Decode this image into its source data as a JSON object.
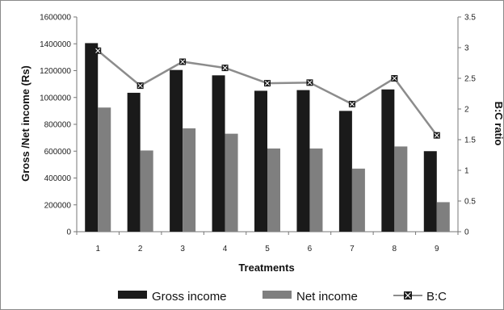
{
  "chart_data": {
    "type": "bar",
    "categories": [
      "1",
      "2",
      "3",
      "4",
      "5",
      "6",
      "7",
      "8",
      "9"
    ],
    "series": [
      {
        "name": "Gross income",
        "type": "bar",
        "axis": "left",
        "color": "#1a1a1a",
        "values": [
          1405000,
          1035000,
          1205000,
          1165000,
          1050000,
          1055000,
          900000,
          1060000,
          600000
        ]
      },
      {
        "name": "Net income",
        "type": "bar",
        "axis": "left",
        "color": "#7f7f7f",
        "values": [
          925000,
          605000,
          770000,
          730000,
          620000,
          620000,
          470000,
          635000,
          220000
        ]
      },
      {
        "name": "B:C",
        "type": "line",
        "axis": "right",
        "color": "#8c8c8c",
        "values": [
          2.95,
          2.38,
          2.77,
          2.67,
          2.42,
          2.43,
          2.08,
          2.5,
          1.57
        ]
      }
    ],
    "xlabel": "Treatments",
    "ylabel": "Gross /Net income (Rs)",
    "y2label": "B:C ratio",
    "ylim": [
      0,
      1600000
    ],
    "y2lim": [
      0,
      3.5
    ],
    "yticks": [
      "0",
      "200000",
      "400000",
      "600000",
      "800000",
      "1000000",
      "1200000",
      "1400000",
      "1600000"
    ],
    "y2ticks": [
      "0",
      "0.5",
      "1",
      "1.5",
      "2",
      "2.5",
      "3",
      "3.5"
    ],
    "grid": false,
    "legend_position": "bottom"
  }
}
